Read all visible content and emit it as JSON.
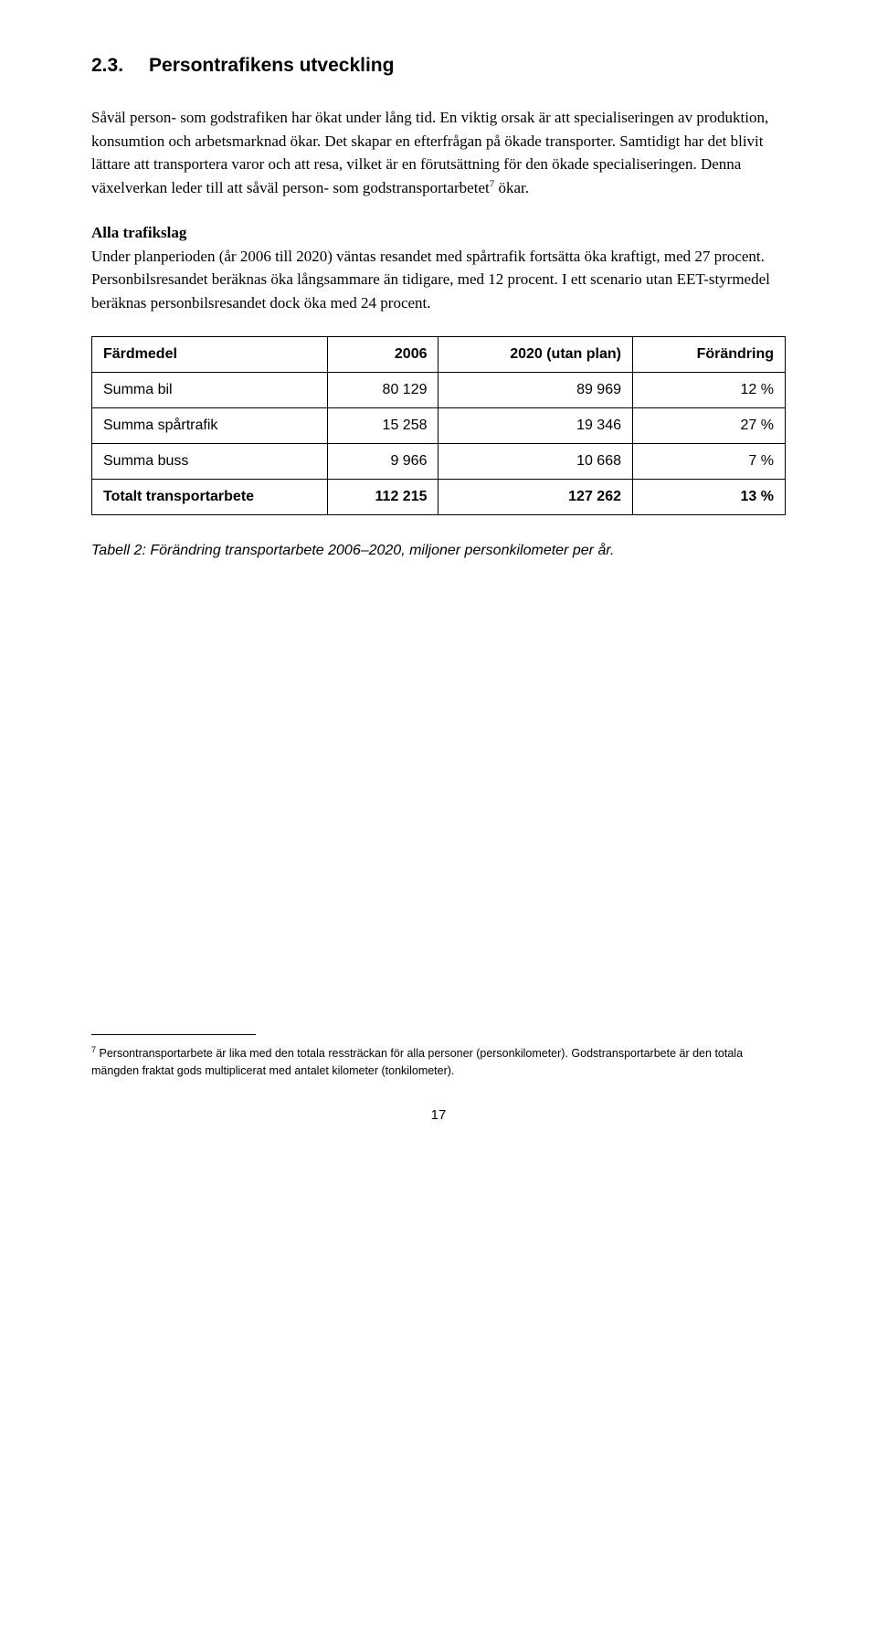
{
  "heading": {
    "number": "2.3.",
    "title": "Persontrafikens utveckling"
  },
  "para1": "Såväl person- som godstrafiken har ökat under lång tid. En viktig orsak är att specialiseringen av produktion, konsumtion och arbetsmarknad ökar. Det skapar en efterfrågan på ökade transporter. Samtidigt har det blivit lättare att transportera varor och att resa, vilket är en förutsättning för den ökade specialiseringen. Denna växelverkan leder till att såväl person- som godstransportarbetet",
  "para1_sup": "7",
  "para1_tail": " ökar.",
  "subheading": "Alla trafikslag",
  "para2": "Under planperioden (år 2006 till 2020) väntas resandet med spårtrafik fortsätta öka kraftigt, med 27 procent. Personbilsresandet beräknas öka långsammare än tidigare, med 12 procent. I ett scenario utan EET-styrmedel beräknas personbilsresandet dock öka med 24 procent.",
  "table": {
    "columns": [
      "Färdmedel",
      "2006",
      "2020 (utan plan)",
      "Förändring"
    ],
    "rows": [
      {
        "label": "Summa bil",
        "c1": "80 129",
        "c2": "89 969",
        "c3": "12 %",
        "bold": false
      },
      {
        "label": "Summa spårtrafik",
        "c1": "15 258",
        "c2": "19 346",
        "c3": "27 %",
        "bold": false
      },
      {
        "label": "Summa buss",
        "c1": "9 966",
        "c2": "10 668",
        "c3": "7 %",
        "bold": false
      },
      {
        "label": "Totalt transportarbete",
        "c1": "112 215",
        "c2": "127 262",
        "c3": "13 %",
        "bold": true
      }
    ],
    "col_widths": [
      "34%",
      "16%",
      "28%",
      "22%"
    ]
  },
  "caption": "Tabell 2: Förändring transportarbete 2006–2020, miljoner personkilometer per år.",
  "footnote": {
    "marker": "7",
    "text": " Persontransportarbete är lika med den totala ressträckan för alla personer (personkilometer). Godstransportarbete är den totala mängden fraktat gods multiplicerat med antalet kilometer (tonkilometer)."
  },
  "page_number": "17",
  "colors": {
    "text": "#000000",
    "background": "#ffffff",
    "border": "#000000"
  }
}
